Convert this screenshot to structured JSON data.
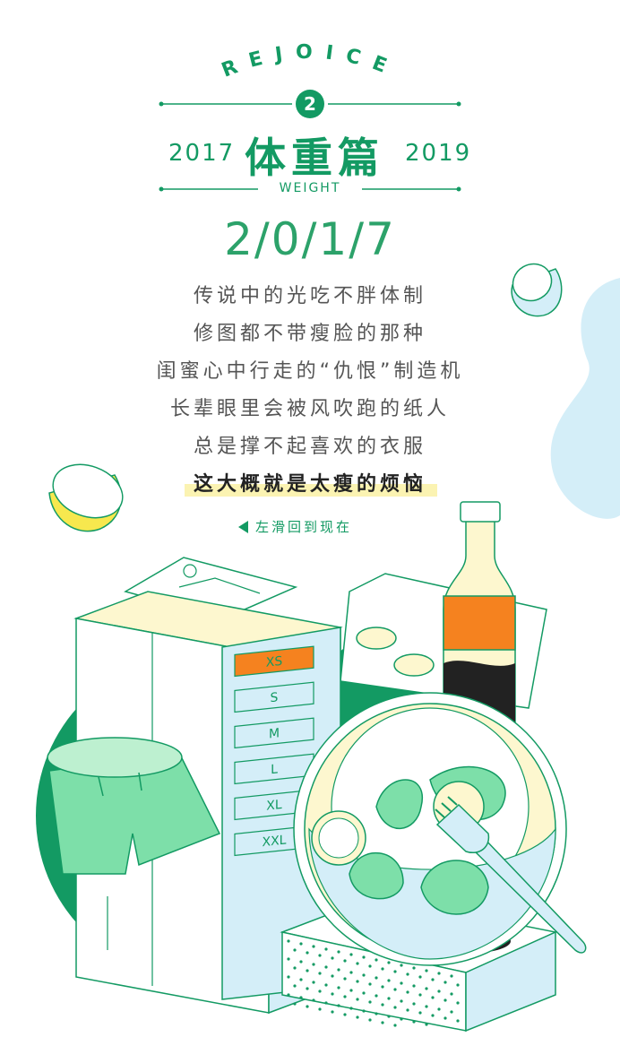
{
  "header": {
    "arc_text": "REJOICE",
    "badge_number": "2",
    "year_left": "2017",
    "year_right": "2019",
    "title": "体重篇",
    "subtitle": "WEIGHT"
  },
  "year_big": "2/0/1/7",
  "lines": [
    "传说中的光吃不胖体制",
    "修图都不带瘦脸的那种",
    "闺蜜心中行走的“仇恨”制造机",
    "长辈眼里会被风吹跑的纸人",
    "总是撑不起喜欢的衣服",
    "这大概就是太瘦的烦恼"
  ],
  "swipe_hint": "左滑回到现在",
  "size_labels": [
    "XS",
    "S",
    "M",
    "L",
    "XL",
    "XXL"
  ],
  "colors": {
    "primary_green": "#139a63",
    "light_blue": "#d4eef8",
    "light_yellow": "#fdf7cf",
    "accent_orange": "#f5821f",
    "highlight_yellow": "#fbf3b2"
  }
}
